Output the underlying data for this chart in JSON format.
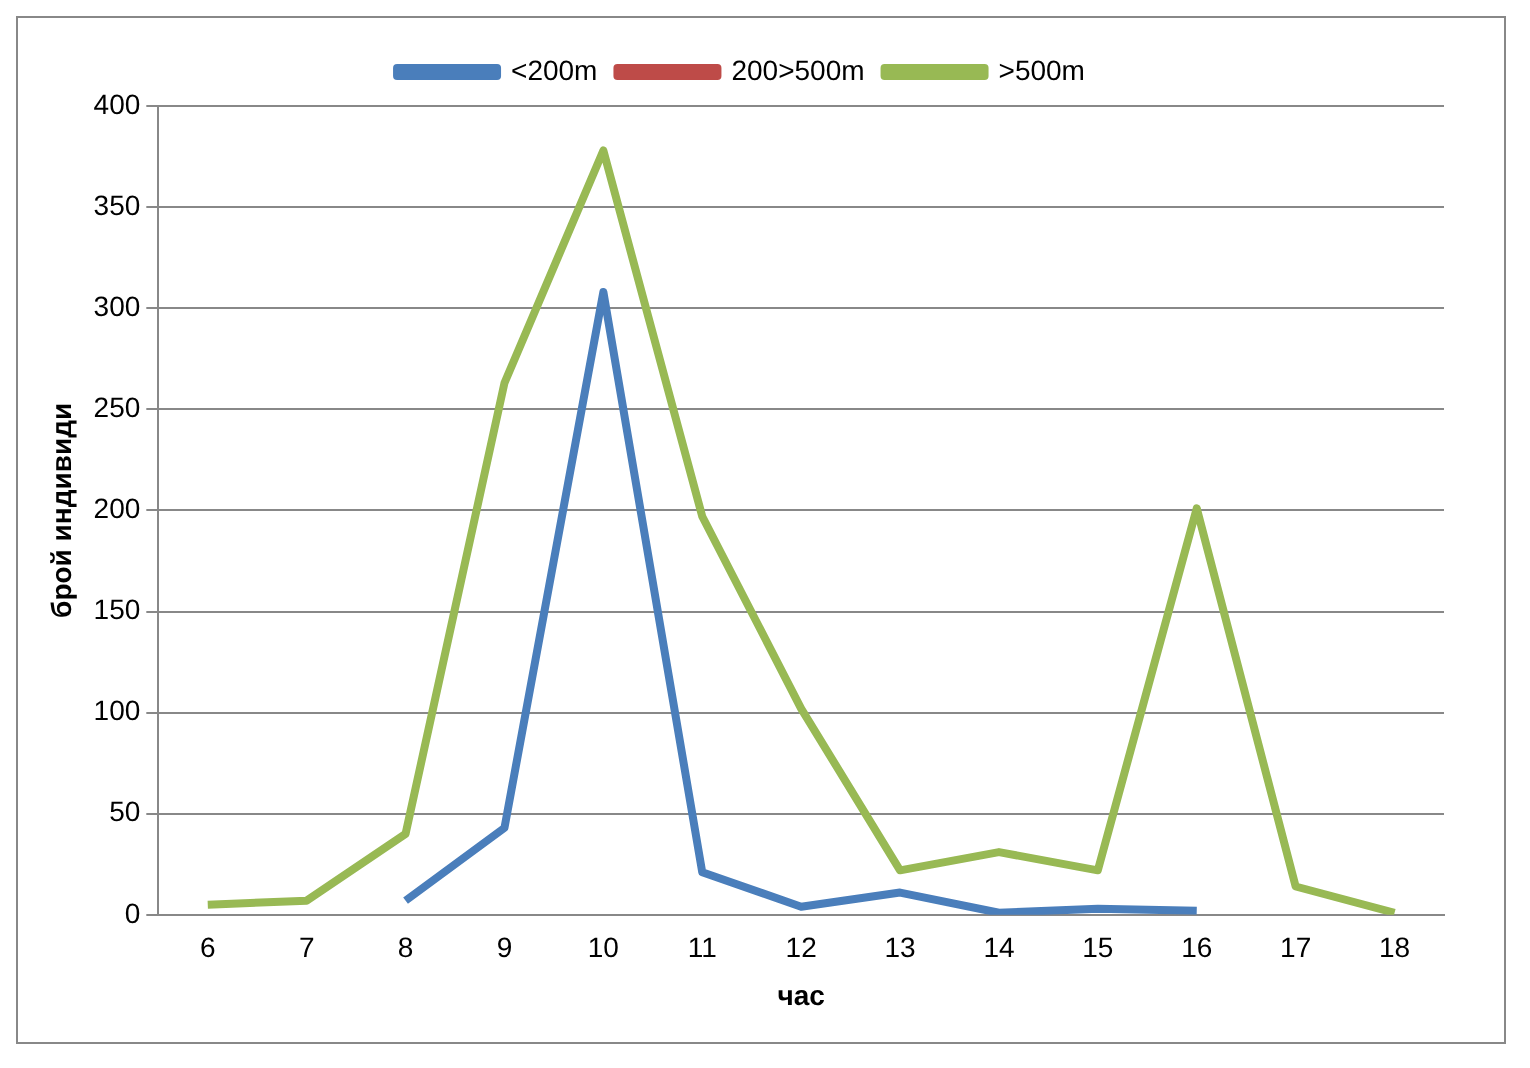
{
  "chart_data": {
    "type": "line",
    "xlabel": "час",
    "ylabel": "брой индивиди",
    "categories": [
      "6",
      "7",
      "8",
      "9",
      "10",
      "11",
      "12",
      "13",
      "14",
      "15",
      "16",
      "17",
      "18"
    ],
    "series": [
      {
        "name": "<200m",
        "color": "#4a7ebb",
        "values": [
          null,
          null,
          7,
          43,
          308,
          21,
          4,
          11,
          1,
          3,
          2,
          null,
          null
        ]
      },
      {
        "name": "200>500m",
        "color": "#be4b48",
        "values": [
          null,
          null,
          null,
          null,
          null,
          null,
          null,
          null,
          null,
          null,
          null,
          null,
          null
        ]
      },
      {
        "name": ">500m",
        "color": "#98b954",
        "values": [
          5,
          7,
          40,
          263,
          378,
          197,
          102,
          22,
          31,
          22,
          201,
          14,
          1
        ]
      }
    ],
    "ylim": [
      0,
      400
    ],
    "yticks": [
      0,
      50,
      100,
      150,
      200,
      250,
      300,
      350,
      400
    ],
    "grid": "y",
    "legend": "top",
    "marker": "none",
    "line_style": "solid"
  }
}
